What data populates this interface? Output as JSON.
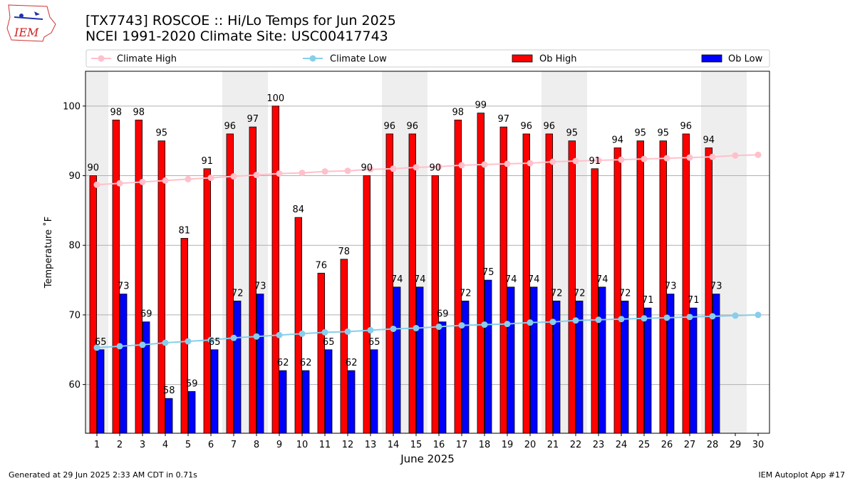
{
  "header": {
    "title_line1": "[TX7743] ROSCOE :: Hi/Lo Temps for Jun 2025",
    "title_line2": "NCEI 1991-2020 Climate Site: USC00417743",
    "logo_text": "IEM"
  },
  "footer": {
    "generated": "Generated at 29 Jun 2025 2:33 AM CDT in 0.71s",
    "app": "IEM Autoplot App #17"
  },
  "colors": {
    "ob_high": "#ff0000",
    "ob_low": "#0000ff",
    "climate_high": "#ffc0cb",
    "climate_low": "#87ceeb",
    "weekend_shade": "#eeeeee"
  },
  "chart_data": {
    "type": "bar",
    "xlabel": "June 2025",
    "ylabel": "Temperature ˚F",
    "ylim": [
      53,
      105
    ],
    "yticks": [
      60,
      70,
      80,
      90,
      100
    ],
    "grid": true,
    "legend_placement": "top",
    "categories": [
      "1",
      "2",
      "3",
      "4",
      "5",
      "6",
      "7",
      "8",
      "9",
      "10",
      "11",
      "12",
      "13",
      "14",
      "15",
      "16",
      "17",
      "18",
      "19",
      "20",
      "21",
      "22",
      "23",
      "24",
      "25",
      "26",
      "27",
      "28",
      "29",
      "30"
    ],
    "shaded_days": [
      1,
      7,
      8,
      14,
      15,
      21,
      22,
      28,
      29
    ],
    "series": [
      {
        "name": "Climate High",
        "kind": "line",
        "values": [
          88.7,
          88.9,
          89.1,
          89.3,
          89.5,
          89.7,
          89.9,
          90.1,
          90.3,
          90.4,
          90.6,
          90.7,
          90.9,
          91.0,
          91.2,
          91.3,
          91.5,
          91.6,
          91.7,
          91.8,
          92.0,
          92.1,
          92.2,
          92.3,
          92.4,
          92.5,
          92.6,
          92.7,
          92.9,
          93.0
        ]
      },
      {
        "name": "Climate Low",
        "kind": "line",
        "values": [
          65.3,
          65.5,
          65.7,
          66.0,
          66.2,
          66.4,
          66.7,
          66.9,
          67.1,
          67.3,
          67.5,
          67.6,
          67.8,
          68.0,
          68.1,
          68.3,
          68.5,
          68.6,
          68.7,
          68.9,
          69.0,
          69.2,
          69.3,
          69.4,
          69.5,
          69.6,
          69.7,
          69.8,
          69.9,
          70.0
        ]
      },
      {
        "name": "Ob High",
        "kind": "bar",
        "values": [
          90,
          98,
          98,
          95,
          81,
          91,
          96,
          97,
          100,
          84,
          76,
          78,
          90,
          96,
          96,
          90,
          98,
          99,
          97,
          96,
          96,
          95,
          91,
          94,
          95,
          95,
          96,
          94,
          null,
          null
        ]
      },
      {
        "name": "Ob Low",
        "kind": "bar",
        "values": [
          65,
          73,
          69,
          58,
          59,
          65,
          72,
          73,
          62,
          62,
          65,
          62,
          65,
          74,
          74,
          69,
          72,
          75,
          74,
          74,
          72,
          72,
          74,
          72,
          71,
          73,
          71,
          73,
          null,
          null
        ]
      }
    ]
  }
}
